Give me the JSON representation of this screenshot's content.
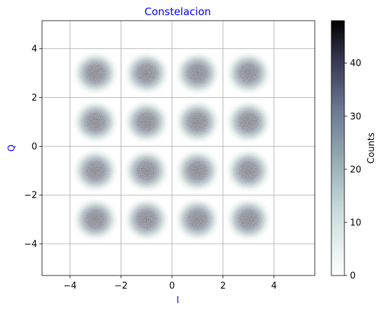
{
  "chart_data": {
    "type": "heatmap",
    "title": "Constelacion",
    "xlabel": "I",
    "ylabel": "Q",
    "xlim": [
      -5.1,
      5.6
    ],
    "ylim": [
      -5.3,
      5.15
    ],
    "x_ticks": [
      -4,
      -2,
      0,
      2,
      4
    ],
    "y_ticks": [
      -4,
      -2,
      0,
      2,
      4
    ],
    "x_tick_labels": [
      "−4",
      "−2",
      "0",
      "2",
      "4"
    ],
    "y_tick_labels": [
      "−4",
      "−2",
      "0",
      "2",
      "4"
    ],
    "grid": true,
    "constellation_points": [
      {
        "i": -3,
        "q": 3
      },
      {
        "i": -1,
        "q": 3
      },
      {
        "i": 1,
        "q": 3
      },
      {
        "i": 3,
        "q": 3
      },
      {
        "i": -3,
        "q": 1
      },
      {
        "i": -1,
        "q": 1
      },
      {
        "i": 1,
        "q": 1
      },
      {
        "i": 3,
        "q": 1
      },
      {
        "i": -3,
        "q": -1
      },
      {
        "i": -1,
        "q": -1
      },
      {
        "i": 1,
        "q": -1
      },
      {
        "i": 3,
        "q": -1
      },
      {
        "i": -3,
        "q": -3
      },
      {
        "i": -1,
        "q": -3
      },
      {
        "i": 1,
        "q": -3
      },
      {
        "i": 3,
        "q": -3
      }
    ],
    "colorbar": {
      "label": "Counts",
      "range": [
        0,
        48
      ],
      "ticks": [
        0,
        10,
        20,
        30,
        40
      ],
      "tick_labels": [
        "0",
        "10",
        "20",
        "30",
        "40"
      ],
      "colormap": "bone_r"
    },
    "colors": {
      "title": "#0000ff",
      "axis_labels": "#0000ff",
      "grid": "#b0b0b0"
    }
  }
}
